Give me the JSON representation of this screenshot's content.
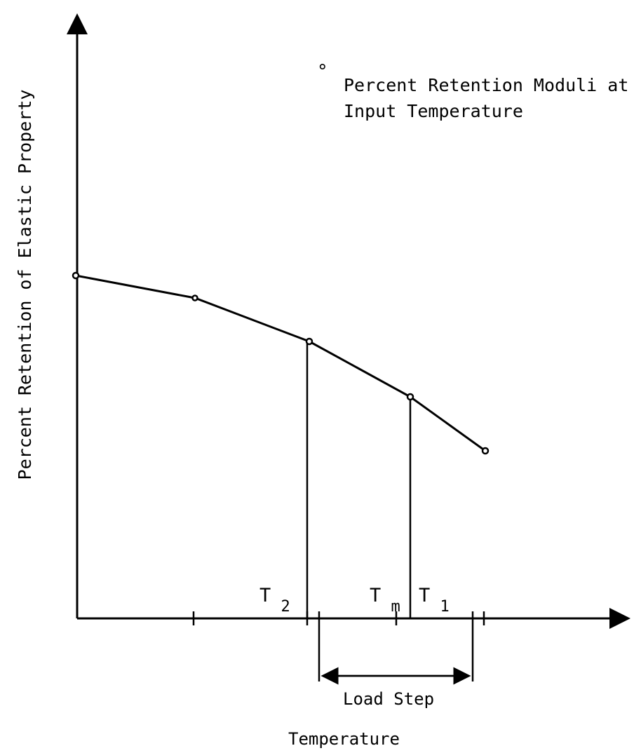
{
  "figure": {
    "y_axis_label": "Percent Retention of Elastic Property",
    "x_axis_label": "Temperature",
    "legend": {
      "marker": "°",
      "line1": "Percent Retention Moduli at",
      "line2": "Input Temperature"
    },
    "temperature_labels": {
      "t2": {
        "base": "T",
        "sub": "2"
      },
      "tm": {
        "base": "T",
        "sub": "m"
      },
      "t1": {
        "base": "T",
        "sub": "1"
      }
    },
    "load_step_label": "Load Step"
  },
  "colors": {
    "ink": "#000000",
    "background": "#ffffff"
  }
}
